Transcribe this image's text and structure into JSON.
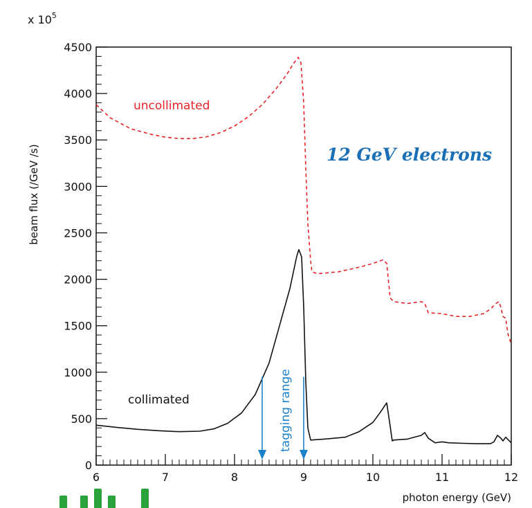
{
  "chart_data": {
    "type": "line",
    "title": "12 GeV electrons",
    "xlabel": "photon energy (GeV)",
    "ylabel": "beam flux (/GeV /s)",
    "y_multiplier": "x 10",
    "y_multiplier_exponent": "5",
    "xlim": [
      6,
      12
    ],
    "ylim": [
      0,
      4500
    ],
    "x_ticks": [
      "6",
      "7",
      "8",
      "9",
      "10",
      "11",
      "12"
    ],
    "y_ticks": [
      "0",
      "500",
      "1000",
      "1500",
      "2000",
      "2500",
      "3000",
      "3500",
      "4000",
      "4500"
    ],
    "grid": false,
    "series": [
      {
        "name": "uncollimated",
        "color": "#e8232a",
        "dash": "dashed",
        "x": [
          6.0,
          6.2,
          6.5,
          6.8,
          7.0,
          7.2,
          7.4,
          7.6,
          7.8,
          8.0,
          8.2,
          8.4,
          8.6,
          8.75,
          8.85,
          8.92,
          8.96,
          9.0,
          9.03,
          9.06,
          9.1,
          9.12,
          9.2,
          9.5,
          9.8,
          10.0,
          10.15,
          10.2,
          10.25,
          10.3,
          10.5,
          10.7,
          10.75,
          10.8,
          11.0,
          11.2,
          11.4,
          11.6,
          11.7,
          11.78,
          11.82,
          11.85,
          11.88,
          11.92,
          11.95,
          12.0
        ],
        "values": [
          3880,
          3740,
          3620,
          3560,
          3530,
          3515,
          3515,
          3535,
          3580,
          3650,
          3750,
          3880,
          4050,
          4200,
          4320,
          4390,
          4330,
          3900,
          3200,
          2600,
          2200,
          2080,
          2060,
          2080,
          2130,
          2170,
          2210,
          2170,
          1800,
          1760,
          1740,
          1760,
          1740,
          1640,
          1630,
          1600,
          1600,
          1630,
          1680,
          1740,
          1760,
          1700,
          1600,
          1580,
          1420,
          1300
        ]
      },
      {
        "name": "collimated",
        "color": "#111111",
        "dash": "solid",
        "x": [
          6.0,
          6.3,
          6.6,
          6.9,
          7.2,
          7.5,
          7.7,
          7.9,
          8.1,
          8.3,
          8.5,
          8.65,
          8.8,
          8.9,
          8.93,
          8.97,
          9.0,
          9.03,
          9.06,
          9.1,
          9.3,
          9.6,
          9.8,
          10.0,
          10.1,
          10.2,
          10.25,
          10.28,
          10.3,
          10.5,
          10.7,
          10.75,
          10.8,
          10.9,
          11.0,
          11.1,
          11.3,
          11.5,
          11.7,
          11.75,
          11.8,
          11.85,
          11.88,
          11.92,
          11.96,
          12.0
        ],
        "values": [
          430,
          405,
          385,
          370,
          360,
          365,
          390,
          450,
          560,
          760,
          1100,
          1500,
          1900,
          2250,
          2320,
          2240,
          1700,
          900,
          400,
          270,
          280,
          300,
          360,
          460,
          560,
          670,
          420,
          260,
          270,
          280,
          320,
          350,
          290,
          240,
          250,
          240,
          235,
          230,
          230,
          250,
          320,
          290,
          260,
          300,
          270,
          240
        ]
      }
    ],
    "annotations": {
      "uncollimated_label": "uncollimated",
      "collimated_label": "collimated",
      "tagging_label": "tagging range",
      "tagging_range": [
        8.4,
        9.0
      ],
      "tagging_arrow_top": 950
    },
    "colors": {
      "title": "#1a6fb5",
      "tagging": "#1b82c9",
      "uncollimated": "#e8232a",
      "collimated": "#111111"
    }
  },
  "footer_fragment": {
    "color": "#2aa33a"
  }
}
